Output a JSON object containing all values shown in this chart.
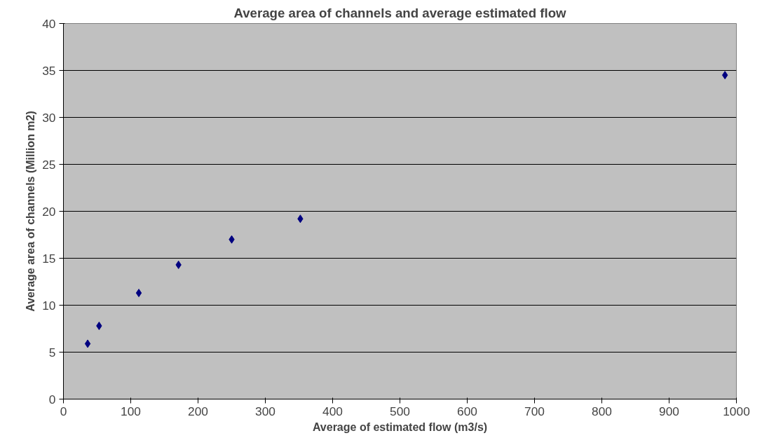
{
  "chart_data": {
    "type": "scatter",
    "title": "Average area of channels and average estimated flow",
    "xlabel": "Average of estimated flow (m3/s)",
    "ylabel": "Average area of channels (Million m2)",
    "x": [
      36,
      53,
      112,
      171,
      250,
      352,
      983
    ],
    "series": [
      {
        "color": "#000080",
        "values": [
          5.9,
          7.8,
          11.3,
          14.3,
          17.0,
          19.2,
          34.5
        ]
      }
    ],
    "xlim": [
      0,
      1000
    ],
    "xticks": [
      0,
      100,
      200,
      300,
      400,
      500,
      600,
      700,
      800,
      900,
      1000
    ],
    "ylim": [
      0,
      40
    ],
    "yticks": [
      0,
      5,
      10,
      15,
      20,
      25,
      30,
      35,
      40
    ],
    "grid": "y",
    "marker": "diamond"
  }
}
